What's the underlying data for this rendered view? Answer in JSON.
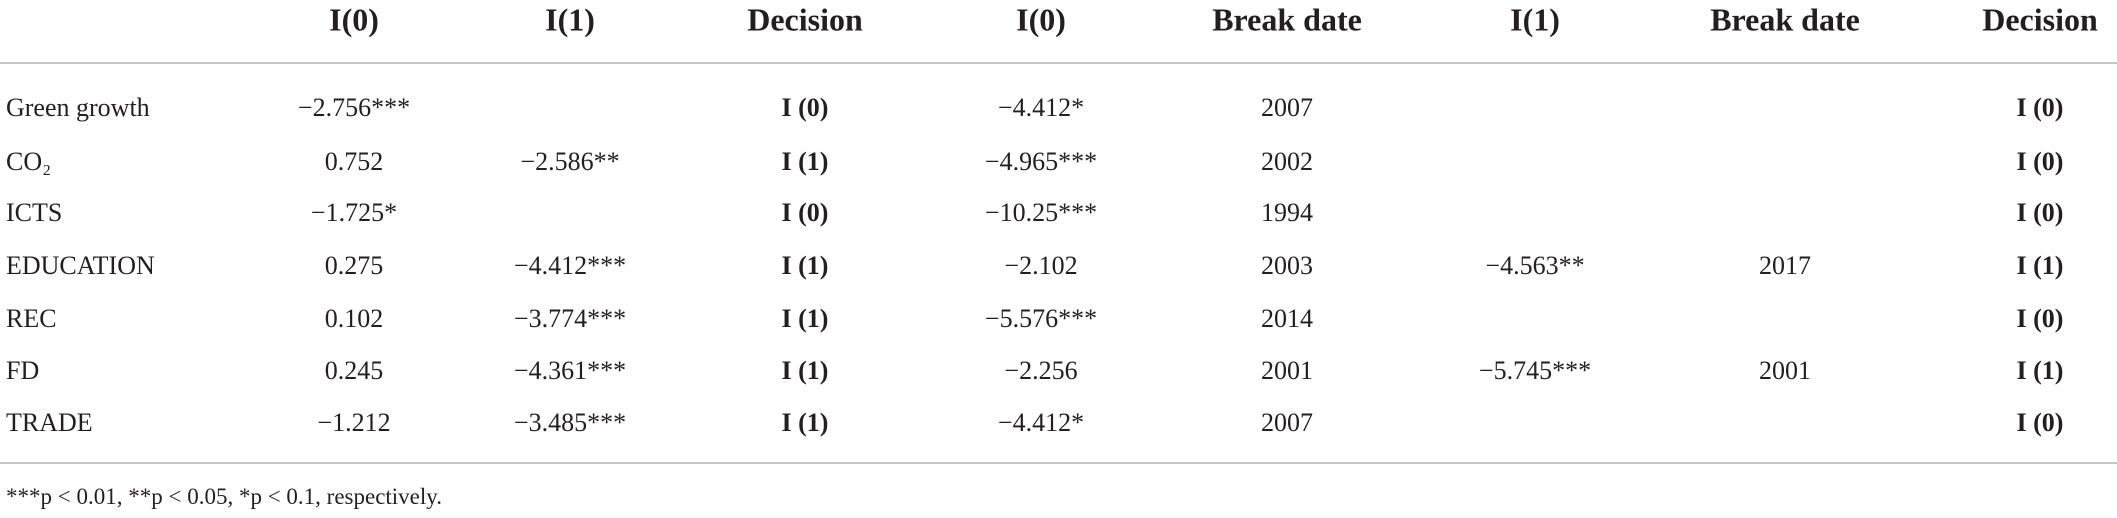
{
  "table": {
    "header": [
      null,
      "I(0)",
      "I(1)",
      "Decision",
      "I(0)",
      "Break date",
      "I(1)",
      "Break date",
      "Decision"
    ],
    "rows": [
      [
        "Green growth",
        "−2.756***",
        null,
        "I (0)",
        "−4.412*",
        "2007",
        null,
        null,
        "I (0)"
      ],
      [
        "CO₂",
        "0.752",
        "−2.586**",
        "I (1)",
        "−4.965***",
        "2002",
        null,
        null,
        "I (0)"
      ],
      [
        "ICTS",
        "−1.725*",
        null,
        "I (0)",
        "−10.25***",
        "1994",
        null,
        null,
        "I (0)"
      ],
      [
        "EDUCATION",
        "0.275",
        "−4.412***",
        "I (1)",
        "−2.102",
        "2003",
        "−4.563**",
        "2017",
        "I (1)"
      ],
      [
        "REC",
        "0.102",
        "−3.774***",
        "I (1)",
        "−5.576***",
        "2014",
        null,
        null,
        "I (0)"
      ],
      [
        "FD",
        "0.245",
        "−4.361***",
        "I (1)",
        "−2.256",
        "2001",
        "−5.745***",
        "2001",
        "I (1)"
      ],
      [
        "TRADE",
        "−1.212",
        "−3.485***",
        "I (1)",
        "−4.412*",
        "2007",
        null,
        null,
        "I (0)"
      ]
    ],
    "footnote": "***p < 0.01, **p < 0.05, *p < 0.1, respectively."
  }
}
